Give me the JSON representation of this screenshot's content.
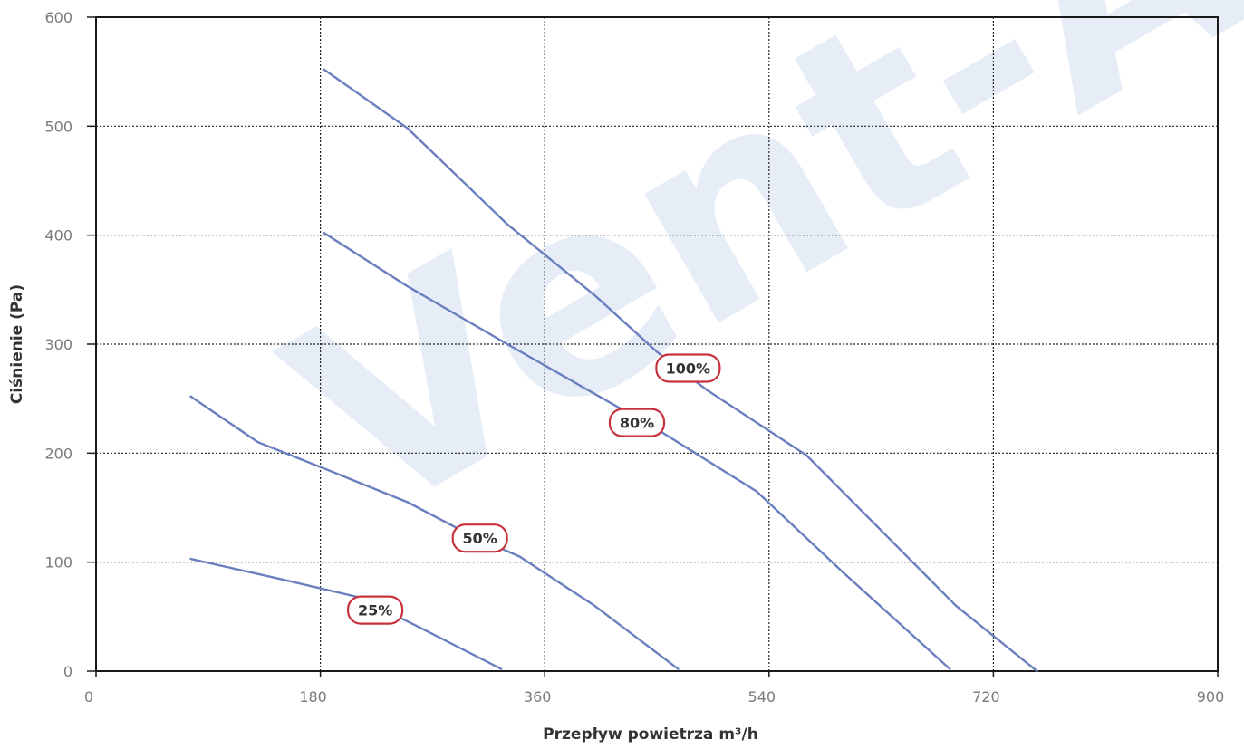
{
  "chart_data": {
    "type": "line",
    "watermark": "Vent-Axia",
    "xlabel": "Przepływ powietrza m³/h",
    "ylabel": "Ciśnienie (Pa)",
    "xlim": [
      0,
      900
    ],
    "ylim": [
      0,
      600
    ],
    "x_ticks": [
      "0",
      "180",
      "360",
      "540",
      "720",
      "900"
    ],
    "y_ticks": [
      "0",
      "100",
      "200",
      "300",
      "400",
      "500",
      "600"
    ],
    "grid": true,
    "line_color": "#6b7fbf",
    "tag_color": "#c8323c",
    "series": [
      {
        "name": "100%",
        "points": [
          [
            183,
            552
          ],
          [
            250,
            498
          ],
          [
            330,
            410
          ],
          [
            400,
            345
          ],
          [
            450,
            293
          ],
          [
            490,
            258
          ],
          [
            570,
            198
          ],
          [
            690,
            60
          ],
          [
            755,
            0
          ]
        ],
        "label_at": [
          475,
          278
        ]
      },
      {
        "name": "80%",
        "points": [
          [
            183,
            402
          ],
          [
            250,
            353
          ],
          [
            330,
            300
          ],
          [
            450,
            222
          ],
          [
            530,
            165
          ],
          [
            600,
            90
          ],
          [
            685,
            2
          ]
        ],
        "label_at": [
          434,
          228
        ]
      },
      {
        "name": "50%",
        "points": [
          [
            76,
            252
          ],
          [
            130,
            210
          ],
          [
            185,
            185
          ],
          [
            250,
            155
          ],
          [
            300,
            125
          ],
          [
            340,
            105
          ],
          [
            400,
            60
          ],
          [
            467,
            2
          ]
        ],
        "label_at": [
          308,
          122
        ]
      },
      {
        "name": "25%",
        "points": [
          [
            76,
            103
          ],
          [
            150,
            84
          ],
          [
            210,
            68
          ],
          [
            260,
            40
          ],
          [
            325,
            2
          ]
        ],
        "label_at": [
          224,
          56
        ]
      }
    ]
  }
}
